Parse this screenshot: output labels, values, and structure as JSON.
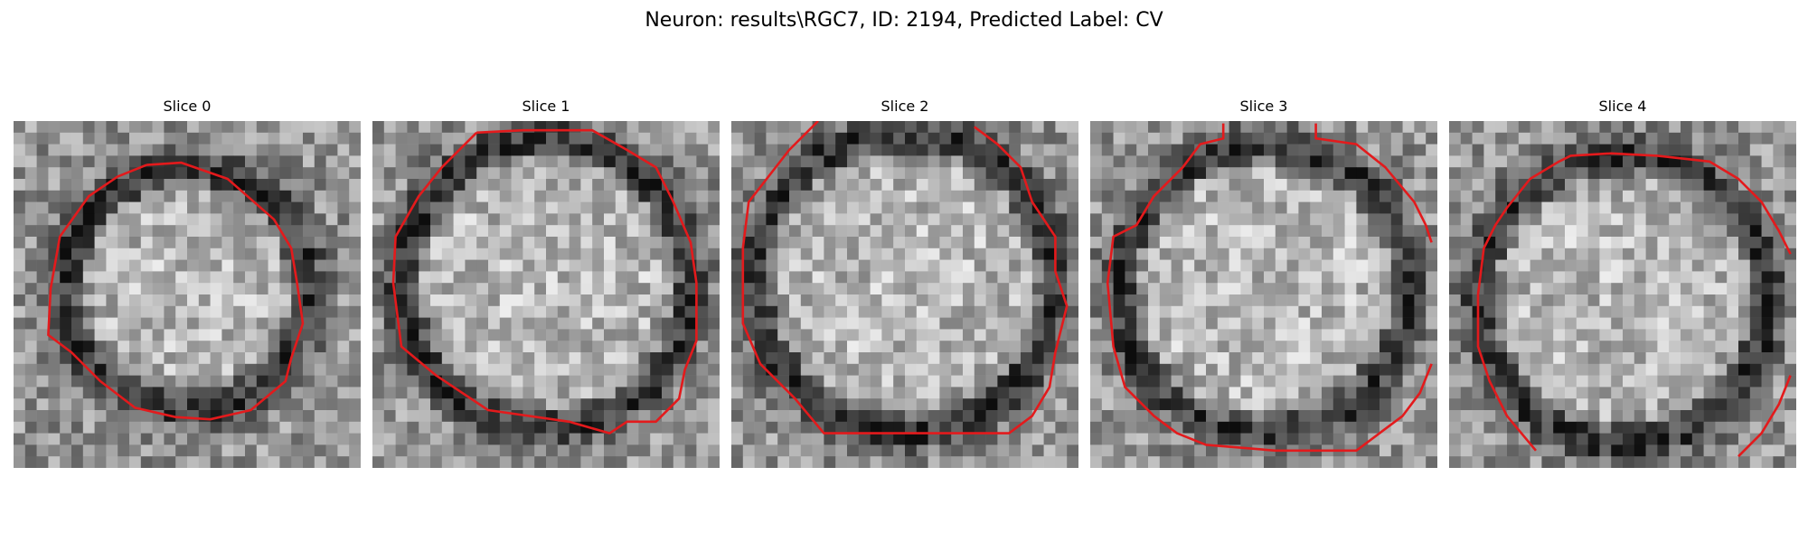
{
  "figure": {
    "title": "Neuron: results\\RGC7, ID: 2194, Predicted Label: CV"
  },
  "panels": [
    {
      "title": "Slice 0"
    },
    {
      "title": "Slice 1"
    },
    {
      "title": "Slice 2"
    },
    {
      "title": "Slice 3"
    },
    {
      "title": "Slice 4"
    }
  ],
  "colors": {
    "contour": "#e31a1c",
    "colormap": "gray"
  }
}
